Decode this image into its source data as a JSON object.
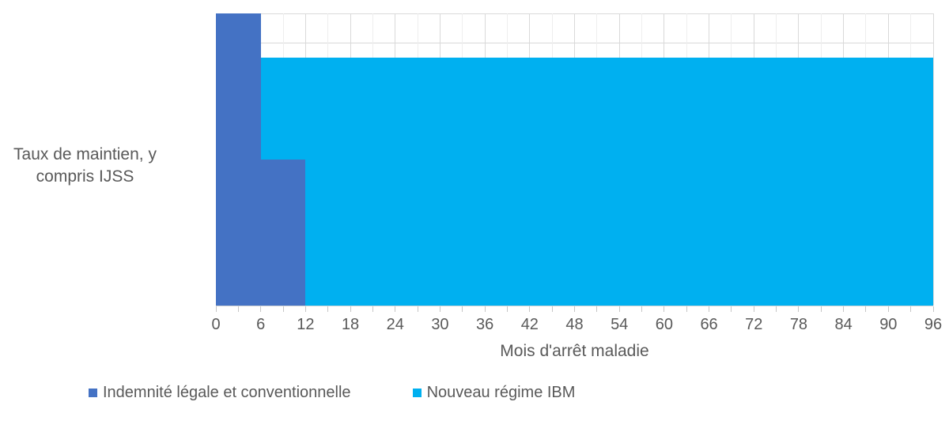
{
  "chart_data": {
    "type": "area",
    "title": "",
    "xlabel": "Mois d'arrêt maladie",
    "ylabel": "Taux de maintien, y compris IJSS",
    "xlim": [
      0,
      96
    ],
    "ylim": [
      0,
      100
    ],
    "x_ticks": [
      0,
      6,
      12,
      18,
      24,
      30,
      36,
      42,
      48,
      54,
      60,
      66,
      72,
      78,
      84,
      90,
      96
    ],
    "y_axis_tick_labels_visible": false,
    "grid": {
      "visible": true,
      "horizontal_major_pct": 10,
      "vertical_major_months": 6,
      "vertical_minor_months": 3
    },
    "legend_position": "bottom-left",
    "series": [
      {
        "name": "Indemnité légale et conventionnelle",
        "color": "#4472C4",
        "unit": "percent_of_salary",
        "steps": [
          {
            "from_month": 0,
            "to_month": 6,
            "value_pct": 100
          },
          {
            "from_month": 6,
            "to_month": 12,
            "value_pct": 50
          },
          {
            "from_month": 12,
            "to_month": 96,
            "value_pct": 0
          }
        ]
      },
      {
        "name": "Nouveau régime IBM",
        "color": "#00B0F0",
        "unit": "percent_of_salary",
        "steps": [
          {
            "from_month": 0,
            "to_month": 96,
            "value_pct": 85
          }
        ]
      }
    ]
  },
  "colors": {
    "series_legal": "#4472C4",
    "series_ibm": "#00B0F0",
    "grid_major": "#D9D9D9",
    "grid_minor": "#EEEEEE",
    "axis_line": "#D6D6D6",
    "text": "#595959",
    "background": "#FFFFFF"
  }
}
